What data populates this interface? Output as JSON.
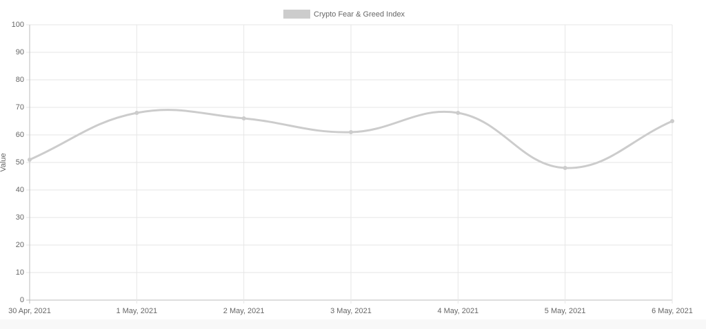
{
  "chart_data": {
    "type": "line",
    "y_label": "Value",
    "categories": [
      "30 Apr, 2021",
      "1 May, 2021",
      "2 May, 2021",
      "3 May, 2021",
      "4 May, 2021",
      "5 May, 2021",
      "6 May, 2021"
    ],
    "series": [
      {
        "name": "Crypto Fear & Greed Index",
        "color": "#cccccc",
        "values": [
          51,
          68,
          66,
          61,
          68,
          48,
          65
        ]
      }
    ],
    "ylim": [
      0,
      100
    ],
    "yticks": [
      0,
      10,
      20,
      30,
      40,
      50,
      60,
      70,
      80,
      90,
      100
    ],
    "grid": true,
    "legend": "top"
  }
}
